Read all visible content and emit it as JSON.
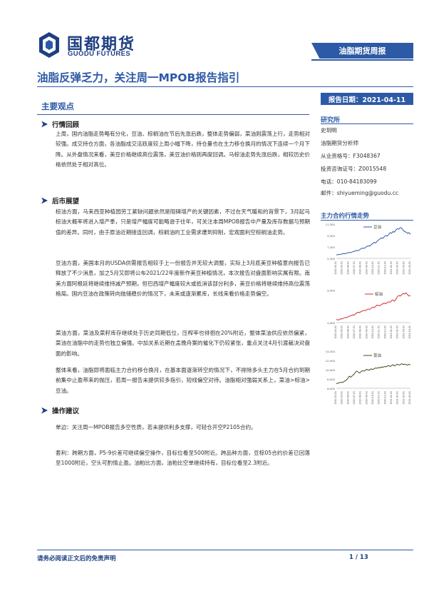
{
  "header": {
    "company_cn": "国都期货",
    "company_en": "GUODU FUTURES",
    "report_type": "油脂期货周报"
  },
  "title": "油脂反弹乏力，关注周一MPOB报告指引",
  "report_date": "报告日期：2021-04-11",
  "main_heading": "主要观点",
  "sections": [
    {
      "heading": "行情回顾",
      "paragraphs": [
        "上周，国内油脂走势略有分化，豆油、棕榈油在节后先涨后跌，整体走势偏弱，菜油则震荡上行，走势相对较强。成交持仓方面，各油脂成交活跃度较上周小幅下降，持仓量也在主力移仓换月的情况下连续一个月下降。从外盘情况来看，美豆价格继续高位震荡，美豆油价格则再度回调。马棕油走势先涨后跌，相较历史价格依然处于相对高位。"
      ]
    },
    {
      "heading": "后市展望",
      "paragraphs": [
        "棕油方面，马来西亚种植园劳工紧缺问题依然是阻碍增产的关键因素，不过在天气暖和的背景下，3月起马棕油大概率将进入增产季，只是增产幅度可能略逊于往年，可关注本周MPOB报告中产量及库存数据与预期值的差异。同时，由于原油近期接连回调，棕榈油的工业需求遭到抑制，宏观面利空棕榈油走势。",
        "豆油方面，美国本月的USDA供需报告相较于上一份报告并无较大调整，实际上3月底美豆种植意向报告已释放了不少消息，加之5月又即将公布2021/22年度新作美豆种植情况，本次报告对盘面影响实属有限。南美方面阿根廷将继续维持减产预期，但巴西增产幅度较大或抵消该部分利多，美豆价格将继续维持高位震荡格局。国内豆油在政策转向抛储稳价的情况下，未来或逐渐累库，长线来看价格走势偏空。",
        "菜油方面，菜油及菜籽库存继续处于历史同期低位，压榨率也徘徊在20%附近，整体菜油供应依然偏紧，菜油在油脂中的走势也独立偏强。中加关系近期在孟晚舟案的催化下仍较紧张，重点关注4月引渡裁决对盘面的影响。",
        "整体来看，油脂即将面临主力合约移仓换月，在基本面逐渐转空的情况下，不排除多头主力在5月合约到期前集中止盈带来的抛压，若周一报告未提供较多指引，短线偏空对待。油脂相对强弱关系上，菜油>棕油>豆油。"
      ]
    },
    {
      "heading": "操作建议",
      "paragraphs": [
        "单边：关注周一MPOB报告多空性质，若未提供利多支撑，可轻仓开空P2105合约。",
        "套利：跨期方面，P5-9价差可继续偏空操作，目标位看至500附近。跨品种方面，豆棕05合约价差已回落至1000附近，空头可酌情止盈。油粕比方面，油粕比空单继续持有，目标位看至2.3附近。"
      ]
    }
  ],
  "sidebar": {
    "heading": "研究所",
    "lines": [
      "史玥明",
      "油脂期货分析师",
      "从业资格号：F3048367",
      "投资咨询证号：Z0015548",
      "电话：010-84183099",
      "邮件：shiyueming@guodu.cc"
    ]
  },
  "chart_section_title": "主力合约行情走势",
  "chart_data": [
    {
      "type": "line",
      "title": "",
      "xlabel": "",
      "ylabel": "",
      "series": [
        {
          "name": "豆油",
          "color": "#2d5aa6",
          "values": [
            5900,
            5950,
            6000,
            6020,
            6080,
            6150,
            6100,
            6200,
            6300,
            6350,
            6300,
            6450,
            6500,
            6600,
            6700,
            6650,
            6800,
            7000,
            7100,
            7050,
            7200,
            7400,
            7500,
            7450,
            7700,
            7900,
            8100,
            8000,
            8300,
            8500,
            8700,
            8900,
            8800,
            9100,
            9300,
            9200,
            9500,
            9800,
            9700,
            10000,
            9900,
            10300,
            10500,
            10400,
            10700,
            10600,
            10200,
            10000,
            9900,
            9700,
            9800,
            9500
          ]
        }
      ],
      "yticks": [
        "11,300",
        "9,300",
        "7,300",
        "5,300"
      ],
      "ylim": [
        5300,
        11300
      ],
      "x_labels": [
        "2020-04-01",
        "2020-05-01",
        "2020-06-01",
        "2020-07-01",
        "2020-08-01",
        "2020-09-01",
        "2020-10-01",
        "2020-11-01",
        "2020-12-01",
        "2021-01-01",
        "2021-02-01",
        "2021-03-01",
        "2021-04-01"
      ]
    },
    {
      "type": "line",
      "title": "",
      "xlabel": "",
      "ylabel": "",
      "series": [
        {
          "name": "棕油",
          "color": "#d0312d",
          "values": [
            4500,
            4400,
            4450,
            4600,
            4550,
            4700,
            4800,
            4750,
            4900,
            5000,
            5050,
            5200,
            5150,
            5300,
            5500,
            5600,
            5550,
            5700,
            5800,
            5900,
            5850,
            6000,
            6100,
            6050,
            6200,
            6400,
            6300,
            6500,
            6700,
            6650,
            6600,
            6800,
            6900,
            7000,
            6900,
            7100,
            7200,
            7150,
            7400,
            7500,
            7300,
            7600,
            8000,
            8200,
            8100,
            8300,
            8500,
            8400,
            8600,
            8300,
            8100,
            8200
          ]
        }
      ],
      "yticks": [
        "9,000",
        "4,000"
      ],
      "ylim": [
        4000,
        9500
      ],
      "x_labels": [
        "2020-04-01",
        "2020-05-01",
        "2020-06-01",
        "2020-07-01",
        "2020-08-01",
        "2020-09-01",
        "2020-10-01",
        "2020-11-01",
        "2020-12-01",
        "2021-01-01",
        "2021-02-01",
        "2021-03-01",
        "2021-04-01"
      ]
    },
    {
      "type": "line",
      "title": "",
      "xlabel": "",
      "ylabel": "",
      "series": [
        {
          "name": "菜油",
          "color": "#3b4f1e",
          "values": [
            7000,
            7100,
            7200,
            7300,
            7250,
            7400,
            7600,
            7800,
            8200,
            8600,
            8400,
            8700,
            9000,
            9400,
            9700,
            9500,
            9300,
            9600,
            9800,
            9700,
            9900,
            10100,
            9900,
            10000,
            10200,
            10050,
            10200,
            10400,
            10300,
            10500,
            10400,
            10600,
            10500,
            10700,
            10600,
            10800,
            10900,
            10700,
            10900,
            11100,
            10800,
            11000,
            11200,
            11000,
            11100,
            11300,
            11100,
            11200,
            11100,
            11000,
            11200,
            11000
          ]
        }
      ],
      "yticks": [
        "14,000",
        "12,000",
        "10,000",
        "8,000",
        "6,000"
      ],
      "ylim": [
        6000,
        14000
      ],
      "x_labels": [
        "2020-04-01",
        "2020-05-01",
        "2020-06-01",
        "2020-07-01",
        "2020-08-01",
        "2020-09-01",
        "2020-10-01",
        "2020-11-01",
        "2020-12-01",
        "2021-01-01",
        "2021-02-01",
        "2021-03-01",
        "2021-04-01"
      ]
    }
  ],
  "footer": {
    "disclaimer": "请务必阅读正文后的免责声明",
    "page": "1 / 13"
  },
  "colors": {
    "brand": "#2d5aa6",
    "dark_brand": "#1e3f82"
  }
}
